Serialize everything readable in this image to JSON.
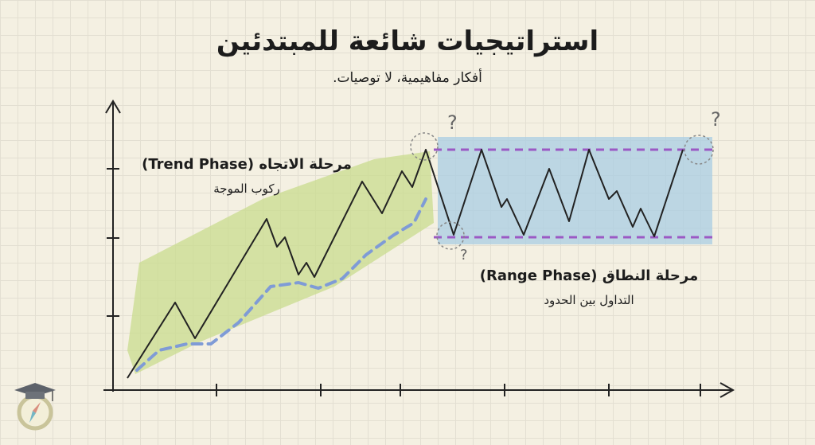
{
  "header": {
    "title": "استراتيجيات شائعة للمبتدئين",
    "subtitle": "أفكار مفاهيمية، لا توصيات."
  },
  "trend": {
    "title": "مرحلة الاتجاه (Trend Phase)",
    "subtitle": "ركوب الموجة"
  },
  "range": {
    "title": "مرحلة النطاق (Range Phase)",
    "subtitle": "التداول بين الحدود"
  },
  "markers": {
    "question": "?"
  },
  "colors": {
    "trend_wash": "#c9dc8e",
    "range_wash": "#a9cde3",
    "support_resistance": "#9b59c4",
    "trend_line": "#7f9bd6",
    "price": "#222222"
  },
  "icons": {
    "logo": "graduation-cap-compass-icon"
  }
}
